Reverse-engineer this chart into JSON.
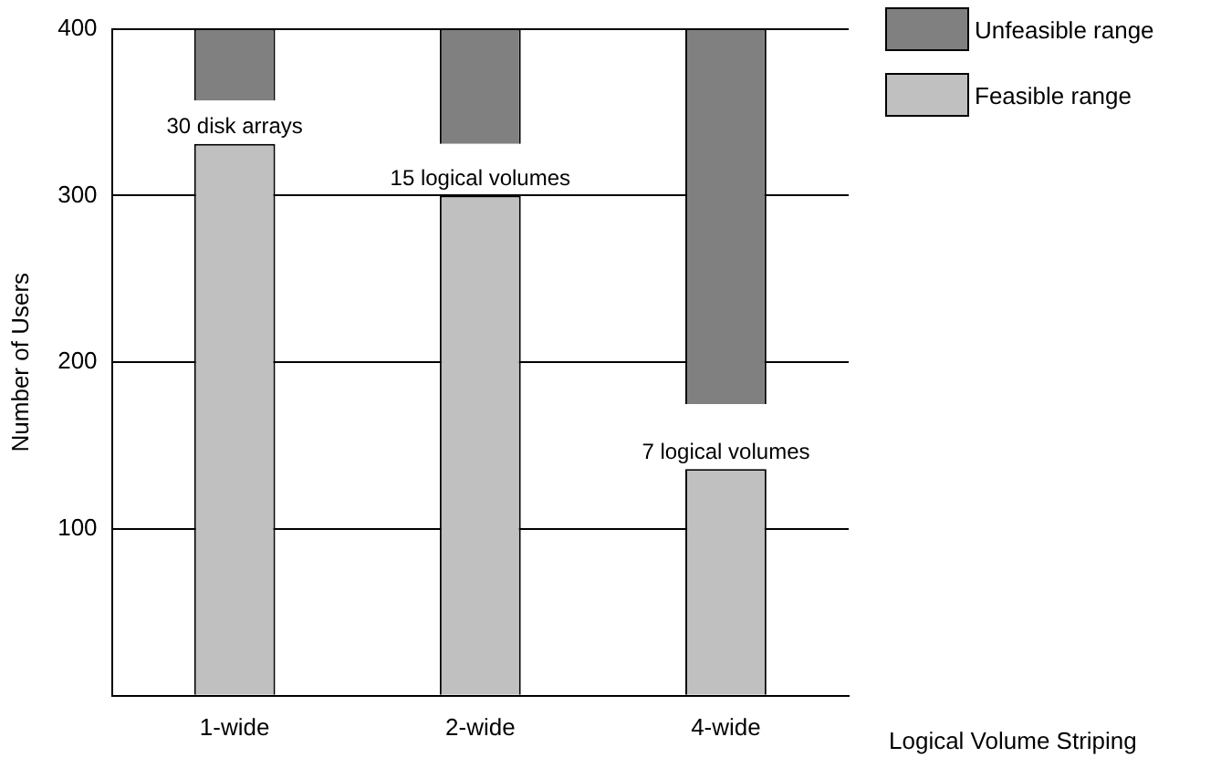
{
  "chart_data": {
    "type": "bar",
    "ylabel": "Number of Users",
    "xlabel": "Logical Volume Striping",
    "categories": [
      "1-wide",
      "2-wide",
      "4-wide"
    ],
    "series": [
      {
        "name": "Unfeasible range",
        "color": "#808080",
        "base": [
          357,
          331,
          175
        ],
        "values": [
          43,
          69,
          225
        ]
      },
      {
        "name": "Feasible range",
        "color": "#c0c0c0",
        "values": [
          331,
          300,
          136
        ]
      }
    ],
    "ylim": [
      0,
      400
    ],
    "yticks": [
      {
        "value": 0,
        "label": null
      },
      100,
      200,
      300,
      400
    ],
    "grid": "y",
    "legend": "top right",
    "annotations": [
      {
        "text": "30 disk arrays",
        "x": "1-wide",
        "y": 331
      },
      {
        "text": "15 logical volumes",
        "x": "2-wide",
        "y": 300
      },
      {
        "text": "7 logical volumes",
        "x": "4-wide",
        "y": 136
      }
    ]
  }
}
